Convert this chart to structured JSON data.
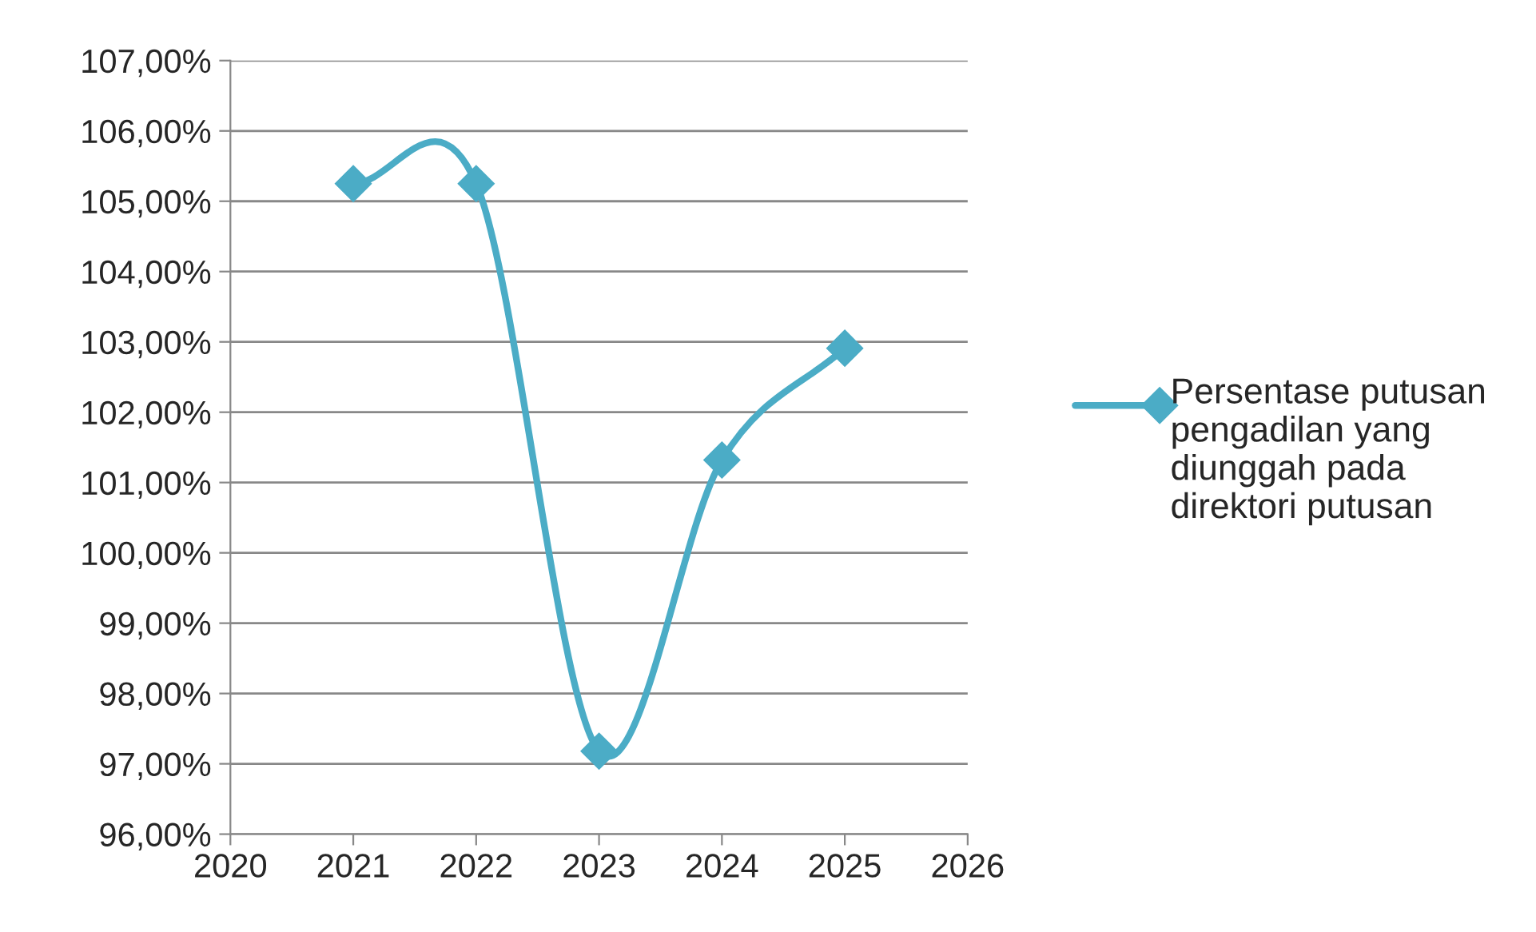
{
  "chart_data": {
    "type": "line",
    "x": [
      2021,
      2022,
      2023,
      2024,
      2025
    ],
    "series": [
      {
        "name": "Persentase putusan pengadilan yang diunggah pada direktori putusan",
        "color": "#4bacc6",
        "values": [
          105.25,
          105.25,
          97.18,
          101.32,
          102.91
        ]
      }
    ],
    "xlim": [
      2020,
      2026
    ],
    "xticks": [
      2020,
      2021,
      2022,
      2023,
      2024,
      2025,
      2026
    ],
    "ylim": [
      96,
      107
    ],
    "yticks": [
      {
        "value": 96,
        "label": "96,00%"
      },
      {
        "value": 97,
        "label": "97,00%"
      },
      {
        "value": 98,
        "label": "98,00%"
      },
      {
        "value": 99,
        "label": "99,00%"
      },
      {
        "value": 100,
        "label": "100,00%"
      },
      {
        "value": 101,
        "label": "101,00%"
      },
      {
        "value": 102,
        "label": "102,00%"
      },
      {
        "value": 103,
        "label": "103,00%"
      },
      {
        "value": 104,
        "label": "104,00%"
      },
      {
        "value": 105,
        "label": "105,00%"
      },
      {
        "value": 106,
        "label": "106,00%"
      },
      {
        "value": 107,
        "label": "107,00%"
      }
    ],
    "grid": "y",
    "legend": "right",
    "marker": "diamond",
    "line_style": "solid"
  }
}
